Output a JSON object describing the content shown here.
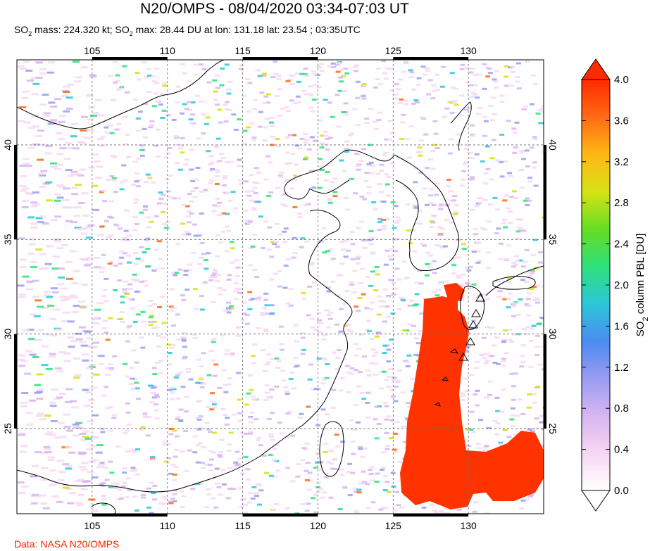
{
  "title": "N20/OMPS - 08/04/2020 03:34-07:03 UT",
  "subtitle_parts": {
    "a": "SO",
    "a_sub": "2",
    "b": " mass: 224.320 kt; SO",
    "b_sub": "2",
    "c": " max: 28.44 DU at lon: 131.18 lat: 23.54 ; 03:35UTC"
  },
  "credit": "Data: NASA N20/OMPS",
  "map": {
    "lon_range": [
      100,
      135
    ],
    "lat_range": [
      20.5,
      44.5
    ],
    "lon_ticks": [
      "105",
      "110",
      "115",
      "120",
      "125",
      "130"
    ],
    "lat_ticks": [
      "25",
      "30",
      "35",
      "40"
    ],
    "grid": "dashed"
  },
  "colorbar": {
    "label_main": "SO",
    "label_sub": "2",
    "label_rest": " column PBL [DU]",
    "ticks": [
      "0.0",
      "0.4",
      "0.8",
      "1.2",
      "1.6",
      "2.0",
      "2.4",
      "2.8",
      "3.2",
      "3.6",
      "4.0"
    ],
    "range": [
      0,
      4
    ],
    "colors": [
      "#ffffff",
      "#f6d8f2",
      "#d7b5f0",
      "#9a9cf2",
      "#4a8cf0",
      "#2cc6d8",
      "#2ee07a",
      "#66dd22",
      "#d6e214",
      "#ffb714",
      "#ff6a14",
      "#ff2a00"
    ]
  },
  "plume_color": "#ff3300"
}
